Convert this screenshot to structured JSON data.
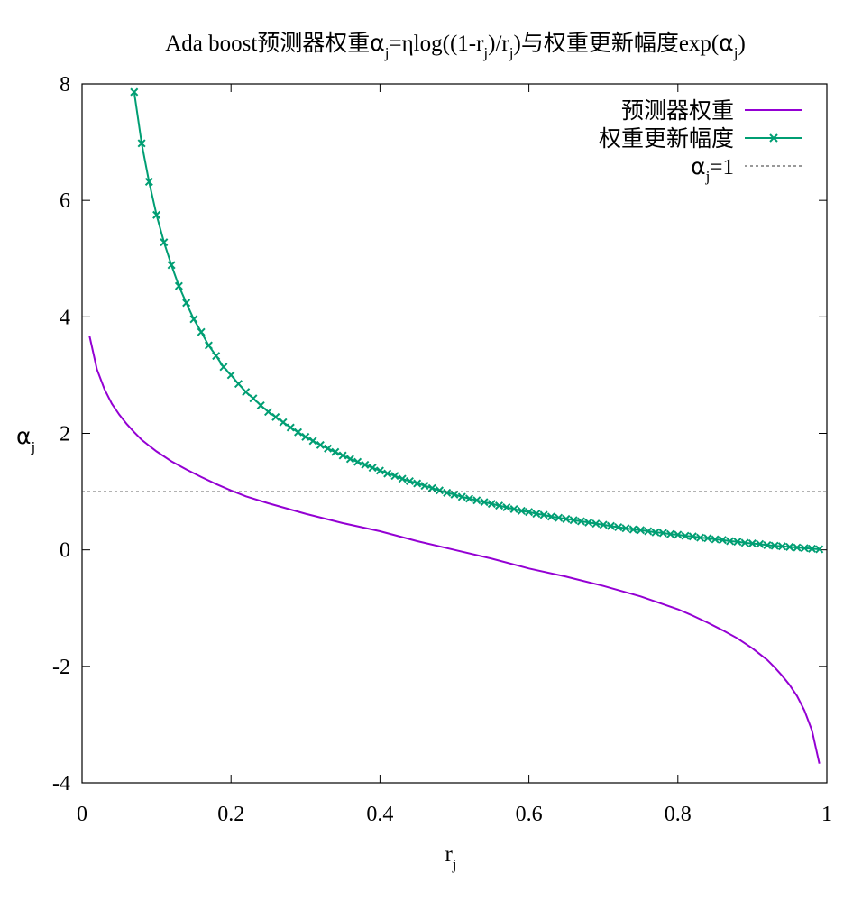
{
  "chart_data": {
    "type": "line",
    "title": {
      "pre": "Ada boost预测器权重",
      "alpha": "α",
      "sub1": "j",
      "mid1": "=ηlog((1-r",
      "sub2": "j",
      "mid2": ")/r",
      "sub3": "j",
      "mid3": ")与权重更新幅度exp(",
      "alpha2": "α",
      "sub4": "j",
      "end": ")"
    },
    "xlabel": {
      "main": "r",
      "sub": "j"
    },
    "ylabel": {
      "main": "α",
      "sub": "j"
    },
    "xlim": [
      0,
      1
    ],
    "ylim": [
      -4,
      8
    ],
    "xticks": [
      "0",
      "0.2",
      "0.4",
      "0.6",
      "0.8",
      "1"
    ],
    "xtick_values": [
      0,
      0.2,
      0.4,
      0.6,
      0.8,
      1
    ],
    "yticks": [
      "-4",
      "-2",
      "0",
      "2",
      "4",
      "6",
      "8"
    ],
    "ytick_values": [
      -4,
      -2,
      0,
      2,
      4,
      6,
      8
    ],
    "grid": false,
    "legend_position": "top-right",
    "series": [
      {
        "name": "预测器权重",
        "color": "#9400d3",
        "marker": "none",
        "x": [
          0.01,
          0.02,
          0.03,
          0.04,
          0.05,
          0.06,
          0.07,
          0.08,
          0.09,
          0.1,
          0.12,
          0.14,
          0.16,
          0.18,
          0.2,
          0.22,
          0.25,
          0.3,
          0.35,
          0.4,
          0.45,
          0.5,
          0.55,
          0.6,
          0.65,
          0.7,
          0.75,
          0.8,
          0.82,
          0.84,
          0.86,
          0.88,
          0.9,
          0.91,
          0.92,
          0.93,
          0.94,
          0.95,
          0.96,
          0.97,
          0.98,
          0.99
        ],
        "values": [
          3.67,
          3.1,
          2.76,
          2.51,
          2.32,
          2.16,
          2.02,
          1.89,
          1.79,
          1.69,
          1.52,
          1.38,
          1.25,
          1.13,
          1.02,
          0.92,
          0.8,
          0.62,
          0.46,
          0.32,
          0.15,
          0.0,
          -0.15,
          -0.32,
          -0.46,
          -0.62,
          -0.8,
          -1.02,
          -1.13,
          -1.25,
          -1.38,
          -1.52,
          -1.69,
          -1.79,
          -1.89,
          -2.02,
          -2.16,
          -2.32,
          -2.51,
          -2.76,
          -3.1,
          -3.67
        ]
      },
      {
        "name": "权重更新幅度",
        "color": "#009e73",
        "marker": "x",
        "x": [
          0.07,
          0.08,
          0.09,
          0.1,
          0.11,
          0.12,
          0.13,
          0.14,
          0.15,
          0.16,
          0.17,
          0.18,
          0.19,
          0.2,
          0.21,
          0.22,
          0.23,
          0.24,
          0.25,
          0.26,
          0.27,
          0.28,
          0.29,
          0.3,
          0.31,
          0.32,
          0.33,
          0.34,
          0.35,
          0.36,
          0.37,
          0.38,
          0.39,
          0.4,
          0.41,
          0.42,
          0.43,
          0.44,
          0.45,
          0.46,
          0.47,
          0.48,
          0.49,
          0.5,
          0.51,
          0.52,
          0.53,
          0.54,
          0.55,
          0.56,
          0.57,
          0.58,
          0.59,
          0.6,
          0.61,
          0.62,
          0.63,
          0.64,
          0.65,
          0.66,
          0.67,
          0.68,
          0.69,
          0.7,
          0.71,
          0.72,
          0.73,
          0.74,
          0.75,
          0.76,
          0.77,
          0.78,
          0.79,
          0.8,
          0.81,
          0.82,
          0.83,
          0.84,
          0.85,
          0.86,
          0.87,
          0.88,
          0.89,
          0.9,
          0.91,
          0.92,
          0.93,
          0.94,
          0.95,
          0.96,
          0.97,
          0.98,
          0.99
        ],
        "values": [
          7.86,
          6.98,
          6.32,
          5.75,
          5.28,
          4.89,
          4.53,
          4.24,
          3.96,
          3.74,
          3.51,
          3.33,
          3.14,
          3.0,
          2.85,
          2.71,
          2.6,
          2.48,
          2.37,
          2.28,
          2.19,
          2.1,
          2.02,
          1.94,
          1.87,
          1.8,
          1.74,
          1.68,
          1.62,
          1.56,
          1.51,
          1.46,
          1.41,
          1.36,
          1.31,
          1.27,
          1.22,
          1.18,
          1.14,
          1.1,
          1.06,
          1.02,
          0.98,
          0.95,
          0.91,
          0.88,
          0.85,
          0.82,
          0.79,
          0.76,
          0.73,
          0.7,
          0.67,
          0.65,
          0.62,
          0.6,
          0.57,
          0.55,
          0.53,
          0.51,
          0.49,
          0.47,
          0.45,
          0.43,
          0.41,
          0.39,
          0.37,
          0.35,
          0.34,
          0.32,
          0.3,
          0.29,
          0.27,
          0.26,
          0.24,
          0.23,
          0.21,
          0.2,
          0.18,
          0.17,
          0.15,
          0.14,
          0.12,
          0.11,
          0.1,
          0.08,
          0.07,
          0.06,
          0.05,
          0.04,
          0.03,
          0.02,
          0.01
        ]
      },
      {
        "name": {
          "main": "α",
          "sub": "j",
          "tail": "=1"
        },
        "color": "#333333",
        "dashed": true,
        "marker": "none",
        "x": [
          0,
          1
        ],
        "values": [
          1,
          1
        ]
      }
    ]
  }
}
